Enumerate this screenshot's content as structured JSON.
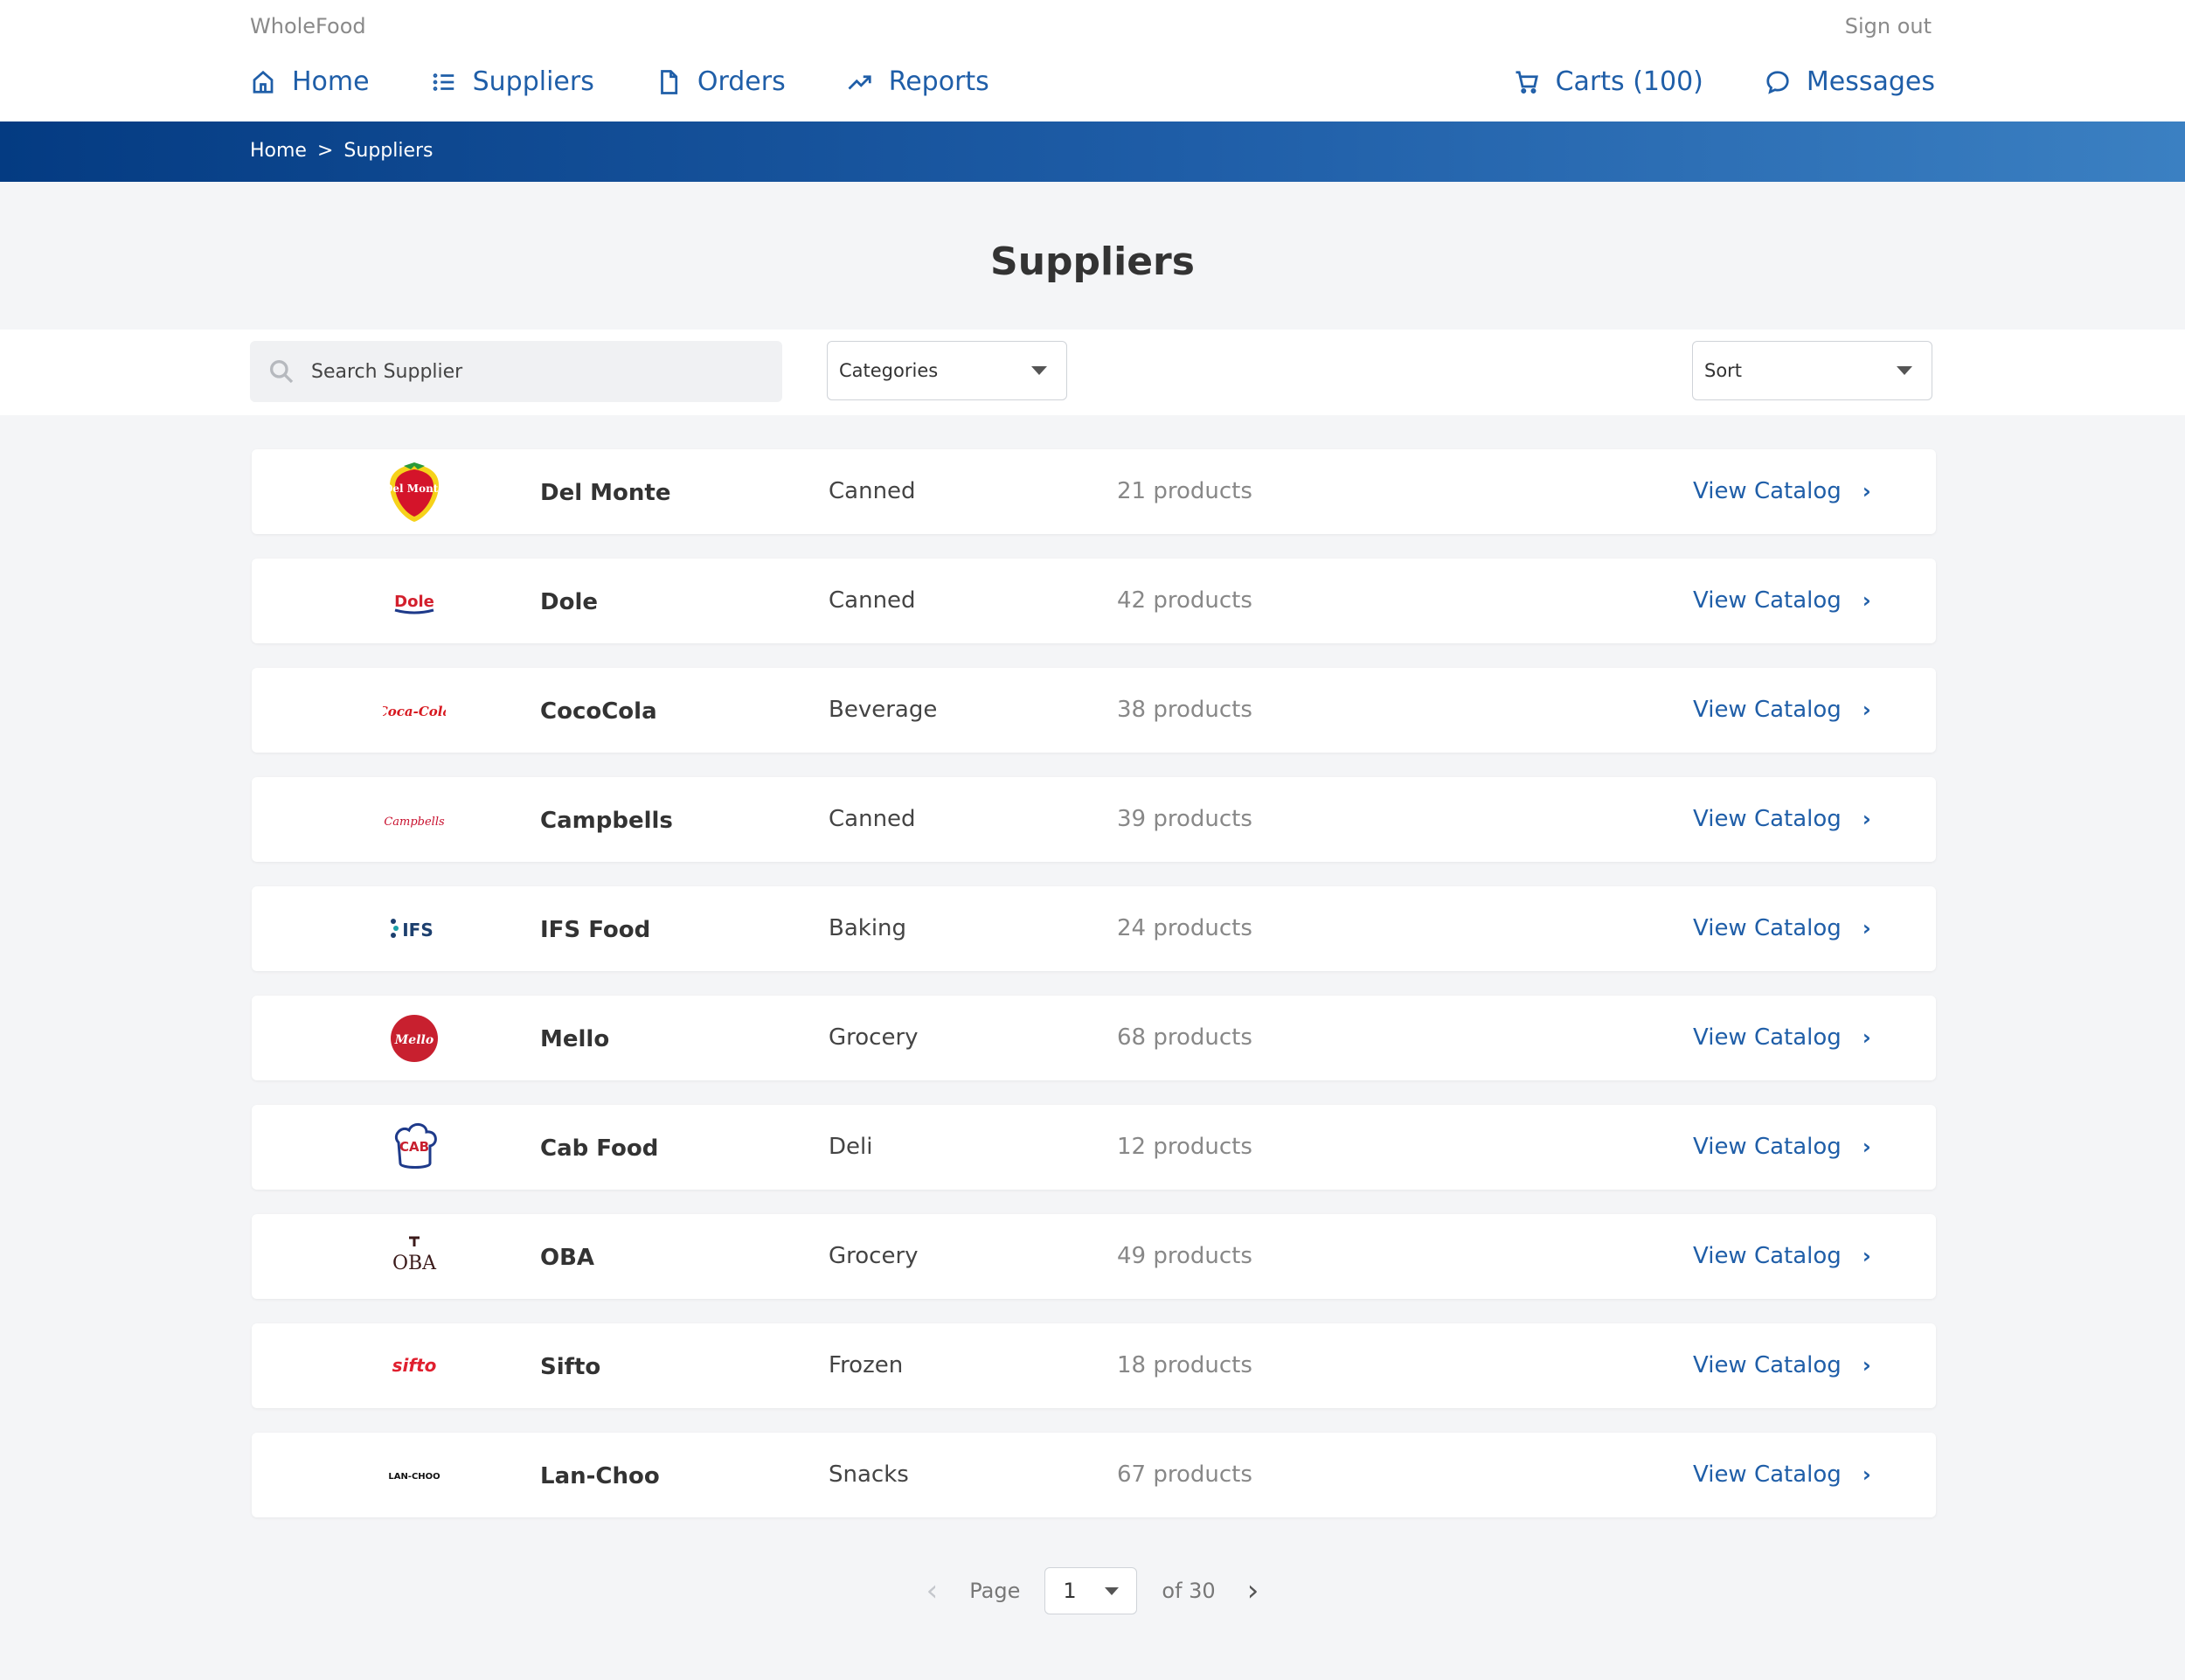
{
  "header": {
    "brand": "WholeFood",
    "signout": "Sign out",
    "nav": [
      {
        "label": "Home",
        "icon": "home-icon"
      },
      {
        "label": "Suppliers",
        "icon": "list-icon"
      },
      {
        "label": "Orders",
        "icon": "document-icon"
      },
      {
        "label": "Reports",
        "icon": "trend-up-icon"
      }
    ],
    "nav_right": [
      {
        "label": "Carts (100)",
        "icon": "cart-icon"
      },
      {
        "label": "Messages",
        "icon": "message-icon"
      }
    ]
  },
  "breadcrumb": {
    "home": "Home",
    "separator": ">",
    "current": "Suppliers"
  },
  "page_title": "Suppliers",
  "filters": {
    "search_placeholder": "Search Supplier",
    "categories_label": "Categories",
    "sort_label": "Sort"
  },
  "suppliers": [
    {
      "name": "Del Monte",
      "category": "Canned",
      "count": "21 products",
      "action": "View Catalog",
      "logo_text": "Del Monte"
    },
    {
      "name": "Dole",
      "category": "Canned",
      "count": "42 products",
      "action": "View Catalog",
      "logo_text": "Dole"
    },
    {
      "name": "CocoCola",
      "category": "Beverage",
      "count": "38 products",
      "action": "View Catalog",
      "logo_text": "Coca-Cola"
    },
    {
      "name": "Campbells",
      "category": "Canned",
      "count": "39 products",
      "action": "View Catalog",
      "logo_text": "Campbells"
    },
    {
      "name": "IFS Food",
      "category": "Baking",
      "count": "24 products",
      "action": "View Catalog",
      "logo_text": "IFS"
    },
    {
      "name": "Mello",
      "category": "Grocery",
      "count": "68 products",
      "action": "View Catalog",
      "logo_text": "Mello"
    },
    {
      "name": "Cab Food",
      "category": "Deli",
      "count": "12 products",
      "action": "View Catalog",
      "logo_text": "CAB"
    },
    {
      "name": "OBA",
      "category": "Grocery",
      "count": "49 products",
      "action": "View Catalog",
      "logo_text": "OBA"
    },
    {
      "name": "Sifto",
      "category": "Frozen",
      "count": "18 products",
      "action": "View Catalog",
      "logo_text": "sifto"
    },
    {
      "name": "Lan-Choo",
      "category": "Snacks",
      "count": "67 products",
      "action": "View Catalog",
      "logo_text": "LAN-CHOO"
    }
  ],
  "pagination": {
    "page_label": "Page",
    "current": "1",
    "of_label": "of 30"
  },
  "colors": {
    "accent": "#1f5ea8",
    "band_start": "#043b82",
    "band_end": "#3b80c2"
  }
}
